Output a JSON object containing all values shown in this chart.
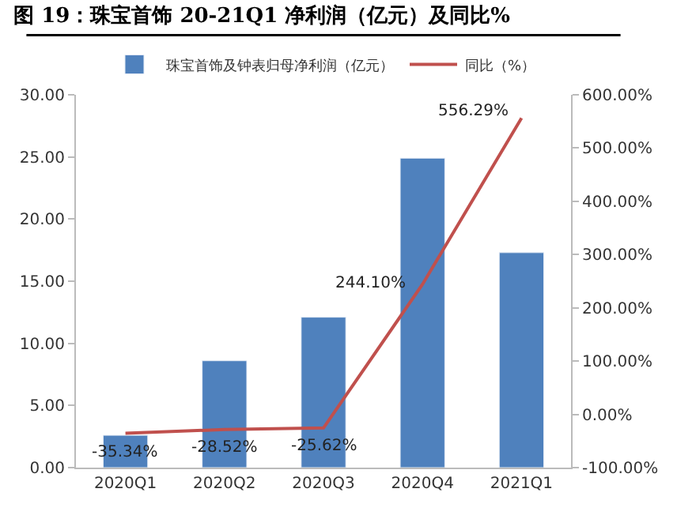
{
  "chart_data": {
    "type": "bar",
    "title": "图 19：珠宝首饰 20-21Q1 净利润（亿元）及同比%",
    "categories": [
      "2020Q1",
      "2020Q2",
      "2020Q3",
      "2020Q4",
      "2021Q1"
    ],
    "series": [
      {
        "name": "珠宝首饰及钟表归母净利润（亿元）",
        "color": "#4f81bd",
        "values": [
          2.6,
          8.6,
          12.1,
          24.9,
          17.3
        ]
      },
      {
        "name": "同比（%）",
        "type": "line",
        "axis": "y2",
        "color": "#c0504d",
        "values": [
          -35.34,
          -28.52,
          -25.62,
          244.1,
          556.29
        ],
        "value_labels": [
          "-35.34%",
          "-28.52%",
          "-25.62%",
          "244.10%",
          "556.29%"
        ]
      }
    ],
    "ylim": [
      0,
      30
    ],
    "yticks": [
      {
        "value": 0,
        "label": "0.00"
      },
      {
        "value": 5,
        "label": "5.00"
      },
      {
        "value": 10,
        "label": "10.00"
      },
      {
        "value": 15,
        "label": "15.00"
      },
      {
        "value": 20,
        "label": "20.00"
      },
      {
        "value": 25,
        "label": "25.00"
      },
      {
        "value": 30,
        "label": "30.00"
      }
    ],
    "y2lim": [
      -100,
      600
    ],
    "y2ticks": [
      {
        "value": -100,
        "label": "-100.00%"
      },
      {
        "value": 0,
        "label": "0.00%"
      },
      {
        "value": 100,
        "label": "100.00%"
      },
      {
        "value": 200,
        "label": "200.00%"
      },
      {
        "value": 300,
        "label": "300.00%"
      },
      {
        "value": 400,
        "label": "400.00%"
      },
      {
        "value": 500,
        "label": "500.00%"
      },
      {
        "value": 600,
        "label": "600.00%"
      }
    ],
    "legend": "top",
    "marker": "none",
    "line_style": "solid"
  }
}
